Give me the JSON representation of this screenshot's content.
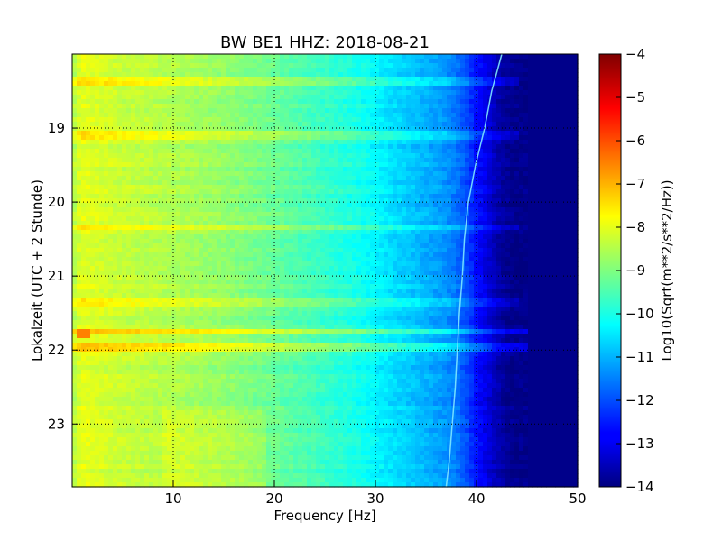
{
  "chart_data": {
    "type": "heatmap",
    "title": "BW BE1 HHZ: 2018-08-21",
    "xlabel": "Frequency [Hz]",
    "ylabel": "Lokalzeit (UTC + 2 Stunde)",
    "xlim": [
      0,
      50
    ],
    "ylim": [
      18.0,
      23.85
    ],
    "y_inverted": true,
    "x_ticks": [
      10,
      20,
      30,
      40,
      50
    ],
    "x_tick_labels": [
      "10",
      "20",
      "30",
      "40",
      "50"
    ],
    "y_ticks": [
      19,
      20,
      21,
      22,
      23
    ],
    "y_tick_labels": [
      "19",
      "20",
      "21",
      "22",
      "23"
    ],
    "grid": true,
    "colormap": "jet",
    "colorbar": {
      "label": "Log10(Sqrt(m**2/s**2/Hz))",
      "range": [
        -14,
        -4
      ],
      "ticks": [
        -4,
        -5,
        -6,
        -7,
        -8,
        -9,
        -10,
        -11,
        -12,
        -13,
        -14
      ],
      "tick_labels": [
        "−4",
        "−5",
        "−6",
        "−7",
        "−8",
        "−9",
        "−10",
        "−11",
        "−12",
        "−13",
        "−14"
      ]
    },
    "profile_frequency_hz": [
      0,
      0.5,
      1,
      5,
      10,
      15,
      20,
      25,
      28,
      30,
      32,
      35,
      37,
      38,
      39,
      40,
      41,
      42,
      43,
      44,
      50
    ],
    "profile_level": [
      -8.6,
      -8.2,
      -8.0,
      -8.3,
      -8.5,
      -8.8,
      -9.2,
      -9.7,
      -10.0,
      -10.3,
      -10.6,
      -11.0,
      -11.3,
      -11.6,
      -12.0,
      -12.6,
      -13.0,
      -13.5,
      -13.8,
      -13.9,
      -13.9
    ],
    "cutoff_frequency_hz": 44,
    "event_bands": [
      {
        "time": 18.35,
        "level_offset": 0.6,
        "fmax": 44
      },
      {
        "time": 19.1,
        "level_offset": 0.5,
        "fmax": 44
      },
      {
        "time": 20.35,
        "level_offset": 0.5,
        "fmax": 44
      },
      {
        "time": 21.35,
        "level_offset": 0.4,
        "fmax": 44
      },
      {
        "time": 21.75,
        "level_offset": 1.0,
        "fmax": 45
      },
      {
        "time": 21.95,
        "level_offset": 0.9,
        "fmax": 45
      }
    ],
    "hotspots": [
      {
        "time": 21.78,
        "freq_min": 0.3,
        "freq_max": 2.0,
        "level": -6.5
      }
    ],
    "resonance_line": {
      "time": [
        18.0,
        18.5,
        19.0,
        19.5,
        20.0,
        20.5,
        21.0,
        21.5,
        22.0,
        22.5,
        23.0,
        23.5,
        23.85
      ],
      "freq_hz": [
        42.5,
        41.5,
        40.8,
        39.9,
        39.2,
        38.8,
        38.6,
        38.3,
        38.1,
        37.9,
        37.6,
        37.3,
        37.0
      ]
    }
  }
}
